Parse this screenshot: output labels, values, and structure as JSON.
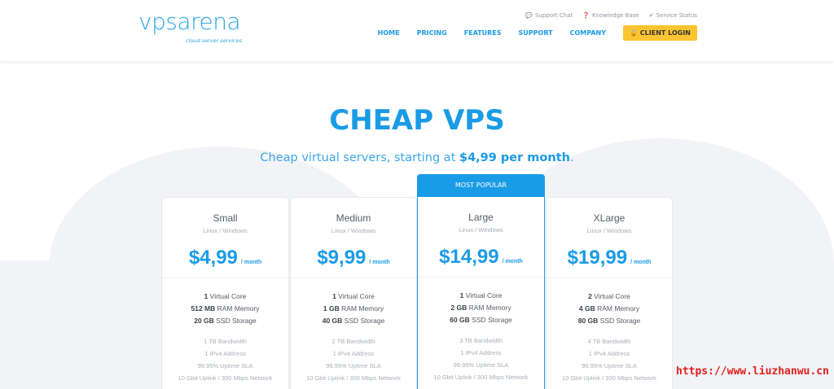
{
  "logo": {
    "text": "vpsarena",
    "tagline": "cloud server services"
  },
  "top_links": [
    {
      "icon": "chat-bubble-icon",
      "label": "Support Chat"
    },
    {
      "icon": "question-circle-icon",
      "label": "Knowledge Base"
    },
    {
      "icon": "check-icon",
      "label": "Service Status"
    }
  ],
  "nav": {
    "items": [
      "HOME",
      "PRICING",
      "FEATURES",
      "SUPPORT",
      "COMPANY"
    ],
    "login_icon": "lock-icon",
    "login": "CLIENT LOGIN"
  },
  "hero": {
    "title": "CHEAP VPS",
    "subtitle_prefix": "Cheap virtual servers, starting at ",
    "subtitle_price": "$4,99 per month",
    "subtitle_suffix": "."
  },
  "popular_label": "MOST POPULAR",
  "plans": [
    {
      "name": "Small",
      "os": "Linux / Windows",
      "price": "$4,99",
      "period": "/ month",
      "core_n": "1",
      "core": " Virtual Core",
      "ram_n": "512 MB",
      "ram": " RAM Memory",
      "disk_n": "20 GB",
      "disk": " SSD Storage",
      "bandwidth": "1 TB Bandwidth",
      "ip": "1 IPv4 Address",
      "sla": "99.95% Uptime SLA",
      "network": "10 Gbit Uplink / 300 Mbps Network"
    },
    {
      "name": "Medium",
      "os": "Linux / Windows",
      "price": "$9,99",
      "period": "/ month",
      "core_n": "1",
      "core": " Virtual Core",
      "ram_n": "1 GB",
      "ram": " RAM Memory",
      "disk_n": "40 GB",
      "disk": " SSD Storage",
      "bandwidth": "2 TB Bandwidth",
      "ip": "1 IPv4 Address",
      "sla": "99.95% Uptime SLA",
      "network": "10 Gbit Uplink / 300 Mbps Network"
    },
    {
      "name": "Large",
      "os": "Linux / Windows",
      "price": "$14,99",
      "period": "/ month",
      "core_n": "1",
      "core": " Virtual Core",
      "ram_n": "2 GB",
      "ram": " RAM Memory",
      "disk_n": "60 GB",
      "disk": " SSD Storage",
      "bandwidth": "3 TB Bandwidth",
      "ip": "1 IPv4 Address",
      "sla": "99.95% Uptime SLA",
      "network": "10 Gbit Uplink / 300 Mbps Network"
    },
    {
      "name": "XLarge",
      "os": "Linux / Windows",
      "price": "$19,99",
      "period": "/ month",
      "core_n": "2",
      "core": " Virtual Core",
      "ram_n": "4 GB",
      "ram": " RAM Memory",
      "disk_n": "80 GB",
      "disk": " SSD Storage",
      "bandwidth": "4 TB Bandwidth",
      "ip": "1 IPv4 Address",
      "sla": "99.95% Uptime SLA",
      "network": "10 Gbit Uplink / 300 Mbps Network"
    }
  ],
  "watermark": "https://www.liuzhanwu.cn",
  "colors": {
    "accent": "#1a9be6",
    "login": "#fbc531",
    "watermark": "#e0201c"
  }
}
